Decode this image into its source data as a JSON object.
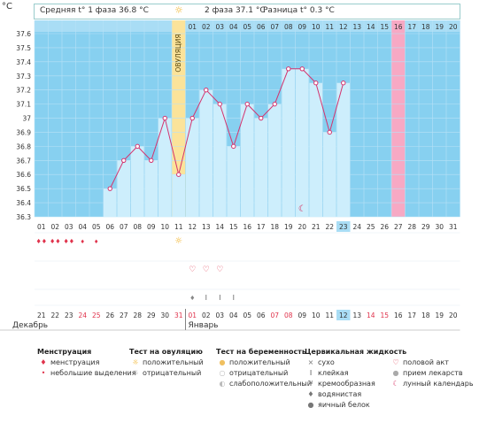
{
  "header": {
    "unit": "°C",
    "phase1": "Средняя t° 1 фаза 36.8 °C",
    "phase2": "2 фаза 37.1 °C",
    "difference": "Разница t° 0.3 °C"
  },
  "chart_data": {
    "type": "line",
    "title": "",
    "ylim": [
      36.3,
      37.6
    ],
    "yticks": [
      "37.6",
      "37.5",
      "37.4",
      "37.3",
      "37.2",
      "37.1",
      "37",
      "36.9",
      "36.8",
      "36.7",
      "36.6",
      "36.5",
      "36.4",
      "36.3"
    ],
    "ovulation_label": "ОВУЛЯЦИЯ",
    "top_labels": [
      "",
      "",
      "",
      "",
      "",
      "",
      "",
      "",
      "",
      "",
      "",
      "01",
      "02",
      "03",
      "04",
      "05",
      "06",
      "07",
      "08",
      "09",
      "10",
      "11",
      "12",
      "13",
      "14",
      "15",
      "16",
      "17",
      "18",
      "19",
      "20"
    ],
    "days_of_cycle": [
      "01",
      "02",
      "03",
      "04",
      "05",
      "06",
      "07",
      "08",
      "09",
      "10",
      "11",
      "12",
      "13",
      "14",
      "15",
      "16",
      "17",
      "18",
      "19",
      "20",
      "21",
      "22",
      "23",
      "24",
      "25",
      "26",
      "27",
      "28",
      "29",
      "30",
      "31"
    ],
    "dates": [
      "21",
      "22",
      "23",
      "24",
      "25",
      "26",
      "27",
      "28",
      "29",
      "30",
      "31",
      "01",
      "02",
      "03",
      "04",
      "05",
      "06",
      "07",
      "08",
      "09",
      "10",
      "11",
      "12",
      "13",
      "14",
      "15",
      "16",
      "17",
      "18",
      "19",
      "20"
    ],
    "red_dates_idx": [
      3,
      4,
      10,
      11,
      17,
      18,
      24,
      25
    ],
    "series": [
      {
        "values": [
          null,
          null,
          null,
          null,
          null,
          36.5,
          36.7,
          36.8,
          36.7,
          37.0,
          36.6,
          37.0,
          37.2,
          37.1,
          36.8,
          37.1,
          37.0,
          37.1,
          37.35,
          37.35,
          37.25,
          36.9,
          37.25,
          null,
          null,
          null,
          null,
          null,
          null,
          null,
          null
        ]
      }
    ],
    "ovulation_day_index": 10,
    "highlight_day_index": 26,
    "today_index": 22
  },
  "months": {
    "left": "Декабрь",
    "right": "Январь"
  },
  "legend": {
    "menstruation": {
      "title": "Менструация",
      "items": [
        "менструация",
        "небольшие выделения"
      ]
    },
    "ovulation_test": {
      "title": "Тест на овуляцию",
      "items": [
        "положительный",
        "отрицательный"
      ]
    },
    "pregnancy_test": {
      "title": "Тест на беременность",
      "items": [
        "положительный",
        "отрицательный",
        "слабоположительный"
      ]
    },
    "cervical": {
      "title": "Цервикальная жидкость",
      "items": [
        "сухо",
        "клейкая",
        "кремообразная",
        "водянистая",
        "яичный белок"
      ]
    },
    "other": {
      "items": [
        "половой акт",
        "прием лекарств",
        "лунный календарь"
      ]
    }
  },
  "colors": {
    "plot_bg": "#87d0f0",
    "bar": "#cdeefc",
    "line": "#d4336e",
    "ovulation": "#fbe39a",
    "highlight": "#f7a9c4",
    "red": "#e0334c"
  }
}
